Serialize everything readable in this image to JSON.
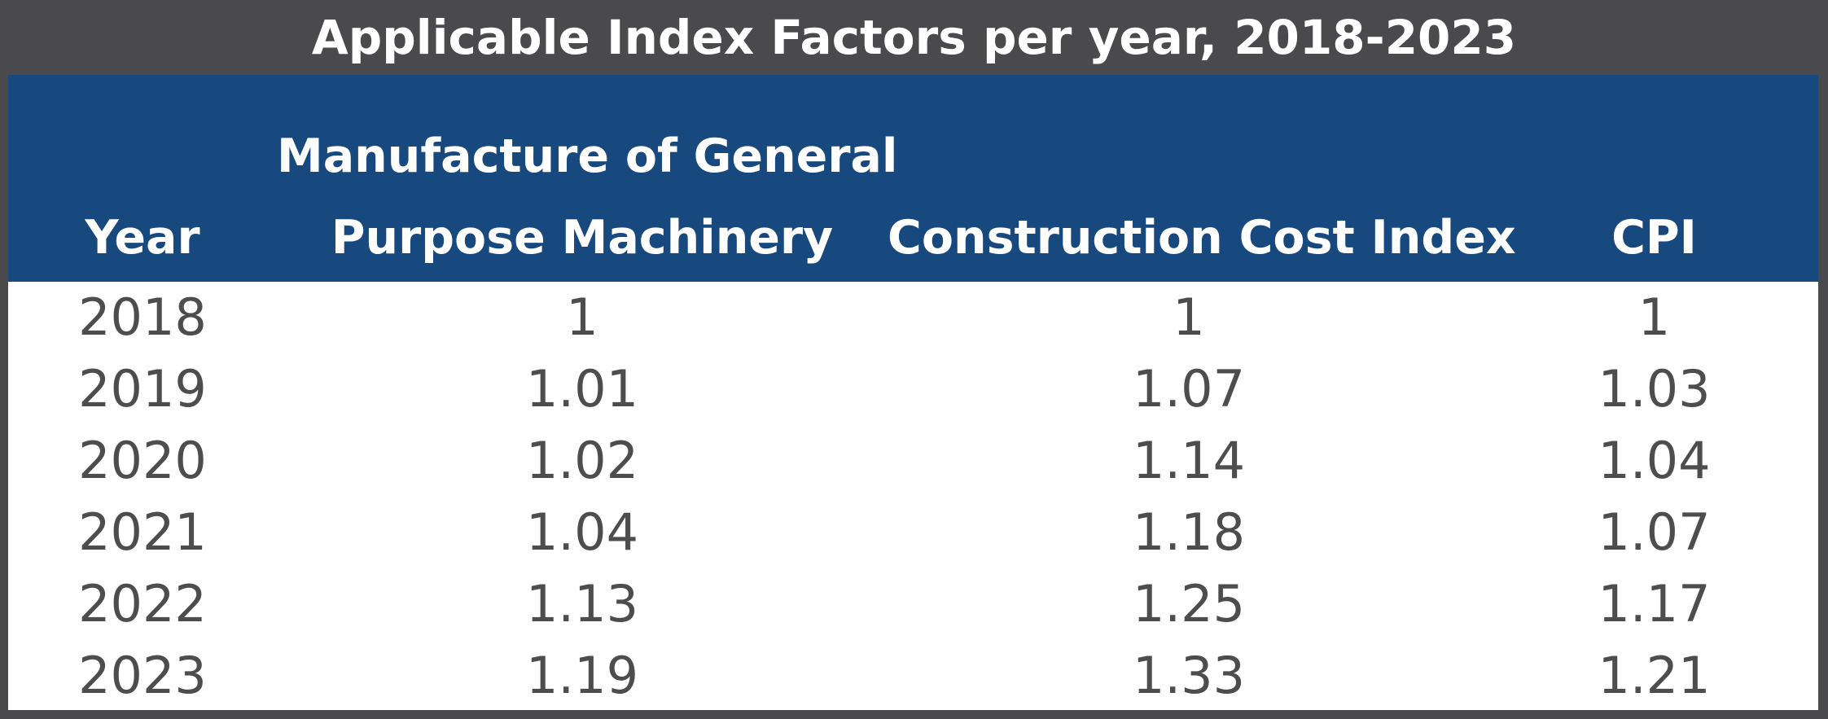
{
  "chart_data": {
    "type": "table",
    "title": "Applicable Index Factors per year, 2018-2023",
    "columns": [
      {
        "lines": [
          "Year"
        ]
      },
      {
        "lines": [
          "Manufacture of General",
          "Purpose Machinery"
        ]
      },
      {
        "lines": [
          "Construction Cost Index"
        ]
      },
      {
        "lines": [
          "CPI"
        ]
      }
    ],
    "rows": [
      [
        "2018",
        "1",
        "1",
        "1"
      ],
      [
        "2019",
        "1.01",
        "1.07",
        "1.03"
      ],
      [
        "2020",
        "1.02",
        "1.14",
        "1.04"
      ],
      [
        "2021",
        "1.04",
        "1.18",
        "1.07"
      ],
      [
        "2022",
        "1.13",
        "1.25",
        "1.17"
      ],
      [
        "2023",
        "1.19",
        "1.33",
        "1.21"
      ]
    ]
  }
}
